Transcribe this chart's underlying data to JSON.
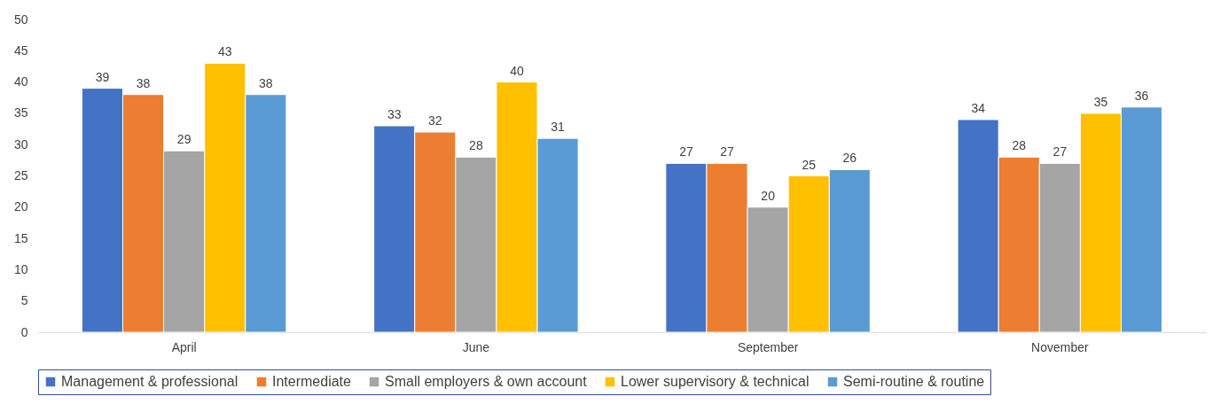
{
  "chart_data": {
    "type": "bar",
    "categories": [
      "April",
      "June",
      "September",
      "November"
    ],
    "series": [
      {
        "name": "Management & professional",
        "color": "#4472c4",
        "values": [
          39,
          33,
          27,
          34
        ]
      },
      {
        "name": "Intermediate",
        "color": "#ed7d31",
        "values": [
          38,
          32,
          27,
          28
        ]
      },
      {
        "name": "Small employers & own account",
        "color": "#a5a5a5",
        "values": [
          29,
          28,
          20,
          27
        ]
      },
      {
        "name": "Lower supervisory & technical",
        "color": "#ffc000",
        "values": [
          43,
          40,
          25,
          35
        ]
      },
      {
        "name": "Semi-routine & routine",
        "color": "#5b9bd5",
        "values": [
          38,
          31,
          26,
          36
        ]
      }
    ],
    "ylim": [
      0,
      50
    ],
    "yticks": [
      0,
      5,
      10,
      15,
      20,
      25,
      30,
      35,
      40,
      45,
      50
    ],
    "grid": false,
    "legend": "bottom",
    "data_labels": true
  }
}
